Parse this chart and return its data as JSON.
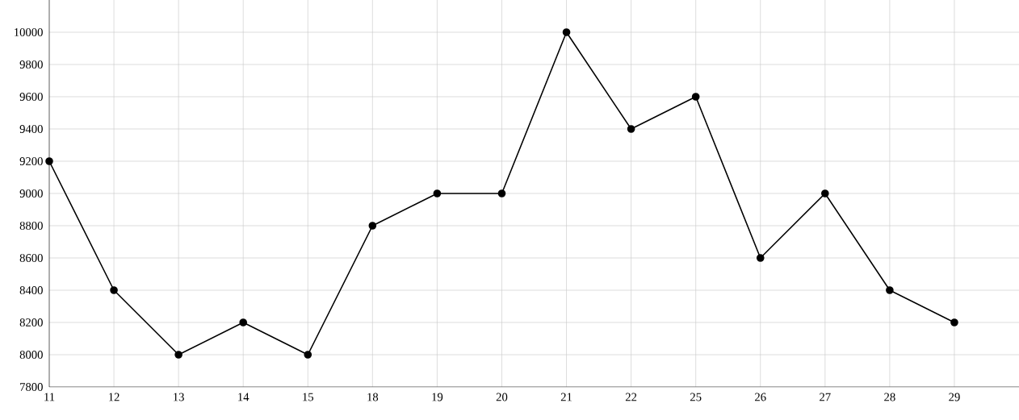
{
  "chart_data": {
    "type": "line",
    "categories": [
      "11",
      "12",
      "13",
      "14",
      "15",
      "18",
      "19",
      "20",
      "21",
      "22",
      "25",
      "26",
      "27",
      "28",
      "29"
    ],
    "values": [
      9200,
      8400,
      8000,
      8200,
      8000,
      8800,
      9000,
      9000,
      10000,
      9400,
      9600,
      8600,
      9000,
      8400,
      8200
    ],
    "color": "#000000",
    "ylim": [
      7800,
      10200
    ],
    "yticks": [
      7800,
      8000,
      8200,
      8400,
      8600,
      8800,
      9000,
      9200,
      9400,
      9600,
      9800,
      10000
    ],
    "grid": true,
    "marker": "circle",
    "line_style": "solid"
  }
}
